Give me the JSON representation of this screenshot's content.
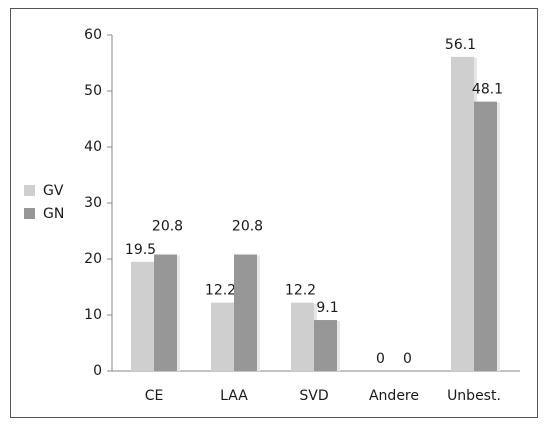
{
  "chart_data": {
    "type": "bar",
    "categories": [
      "CE",
      "LAA",
      "SVD",
      "Andere",
      "Unbest."
    ],
    "series": [
      {
        "name": "GV",
        "values": [
          19.5,
          12.2,
          12.2,
          0,
          56.1
        ],
        "color": "#cfcfcf"
      },
      {
        "name": "GN",
        "values": [
          20.8,
          20.8,
          9.1,
          0,
          48.1
        ],
        "color": "#979797"
      }
    ],
    "title": "",
    "xlabel": "",
    "ylabel": "",
    "ylim": [
      0,
      60
    ],
    "yticks": [
      0,
      10,
      20,
      30,
      40,
      50,
      60
    ],
    "grid": false,
    "legend_position": "left",
    "data_labels": true
  }
}
